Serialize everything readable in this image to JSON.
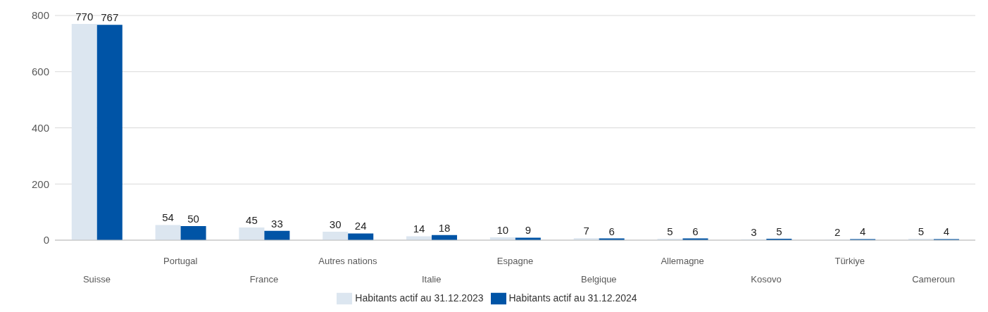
{
  "chart_data": {
    "type": "bar",
    "categories": [
      "Suisse",
      "Portugal",
      "France",
      "Autres nations",
      "Italie",
      "Espagne",
      "Belgique",
      "Allemagne",
      "Kosovo",
      "Türkiye",
      "Cameroun"
    ],
    "series": [
      {
        "name": "Habitants actif au 31.12.2023",
        "color": "#dce6f0",
        "values": [
          770,
          54,
          45,
          30,
          14,
          10,
          7,
          5,
          3,
          2,
          5
        ]
      },
      {
        "name": "Habitants actif au 31.12.2024",
        "color": "#0054a6",
        "values": [
          767,
          50,
          33,
          24,
          18,
          9,
          6,
          6,
          5,
          4,
          4
        ]
      }
    ],
    "ylim": [
      0,
      800
    ],
    "yticks": [
      0,
      200,
      400,
      600,
      800
    ],
    "grid": "y",
    "legend": "bottom",
    "data_labels": true
  }
}
